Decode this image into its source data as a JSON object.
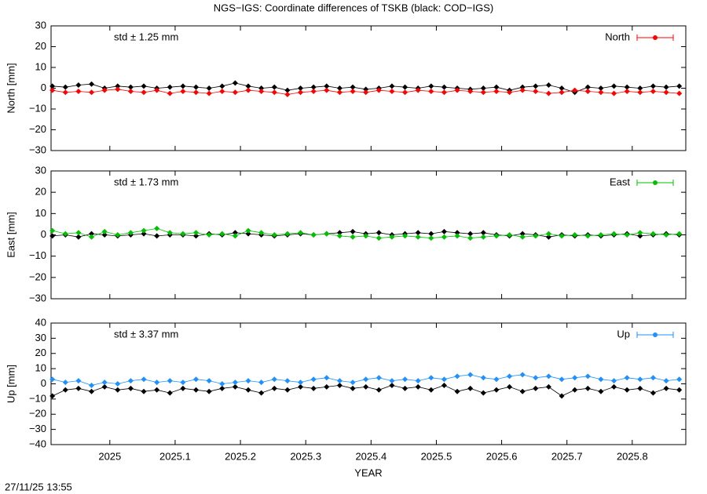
{
  "title": "NGS−IGS: Coordinate differences of TSKB (black: COD−IGS)",
  "footer": "27/11/25 13:55",
  "chart_data": [
    {
      "type": "line",
      "ylabel": "North [mm]",
      "annotation": "std ± 1.25 mm",
      "legend": "top-right",
      "x": [
        2024.912,
        2024.932,
        2024.952,
        2024.972,
        2024.992,
        2025.012,
        2025.032,
        2025.052,
        2025.072,
        2025.092,
        2025.112,
        2025.132,
        2025.152,
        2025.172,
        2025.192,
        2025.212,
        2025.232,
        2025.252,
        2025.272,
        2025.292,
        2025.312,
        2025.332,
        2025.352,
        2025.372,
        2025.392,
        2025.412,
        2025.432,
        2025.452,
        2025.472,
        2025.492,
        2025.512,
        2025.532,
        2025.552,
        2025.572,
        2025.592,
        2025.612,
        2025.632,
        2025.652,
        2025.672,
        2025.692,
        2025.712,
        2025.732,
        2025.752,
        2025.772,
        2025.792,
        2025.812,
        2025.832,
        2025.852,
        2025.872
      ],
      "xlim": [
        2024.91,
        2025.882
      ],
      "ylim": [
        -30,
        30
      ],
      "yticks": [
        {
          "value": -30,
          "label": "−30"
        },
        {
          "value": -20,
          "label": "−20"
        },
        {
          "value": -10,
          "label": "−10"
        },
        0,
        10,
        20,
        30
      ],
      "series": [
        {
          "color": "#000000",
          "values": [
            1,
            0.5,
            1.5,
            2,
            0,
            1,
            0.5,
            1,
            0,
            0.5,
            1,
            0.5,
            0,
            1,
            2.5,
            1,
            0,
            0.5,
            -1,
            0,
            0.5,
            1,
            0,
            0.5,
            -0.5,
            0,
            1,
            0.5,
            0,
            1,
            0.5,
            0,
            -0.5,
            0,
            0.5,
            -1,
            0.5,
            1,
            1.5,
            0,
            -2,
            0.5,
            0,
            1,
            0.5,
            0,
            1,
            0.5,
            1
          ]
        },
        {
          "name": "North",
          "color": "#ff0000",
          "values": [
            -1,
            -2,
            -1.5,
            -2,
            -1,
            -0.5,
            -1.5,
            -2,
            -1,
            -2.5,
            -1.5,
            -2,
            -2.5,
            -1.5,
            -2,
            -1,
            -1.5,
            -2,
            -3,
            -2,
            -1.5,
            -1,
            -2,
            -1.5,
            -2,
            -1,
            -1.5,
            -2,
            -1,
            -1.5,
            -2,
            -1,
            -1.5,
            -2,
            -1.5,
            -2,
            -1,
            -1.5,
            -2.5,
            -2,
            -1,
            -1.5,
            -2,
            -2.5,
            -1.5,
            -2,
            -1.5,
            -2,
            -2.5
          ]
        }
      ]
    },
    {
      "type": "line",
      "ylabel": "East [mm]",
      "annotation": "std ± 1.73 mm",
      "legend": "top-right",
      "x": [
        2024.912,
        2024.932,
        2024.952,
        2024.972,
        2024.992,
        2025.012,
        2025.032,
        2025.052,
        2025.072,
        2025.092,
        2025.112,
        2025.132,
        2025.152,
        2025.172,
        2025.192,
        2025.212,
        2025.232,
        2025.252,
        2025.272,
        2025.292,
        2025.312,
        2025.332,
        2025.352,
        2025.372,
        2025.392,
        2025.412,
        2025.432,
        2025.452,
        2025.472,
        2025.492,
        2025.512,
        2025.532,
        2025.552,
        2025.572,
        2025.592,
        2025.612,
        2025.632,
        2025.652,
        2025.672,
        2025.692,
        2025.712,
        2025.732,
        2025.752,
        2025.772,
        2025.792,
        2025.812,
        2025.832,
        2025.852,
        2025.872
      ],
      "xlim": [
        2024.91,
        2025.882
      ],
      "ylim": [
        -30,
        30
      ],
      "yticks": [
        {
          "value": -30,
          "label": "−30"
        },
        {
          "value": -20,
          "label": "−20"
        },
        {
          "value": -10,
          "label": "−10"
        },
        0,
        10,
        20,
        30
      ],
      "series": [
        {
          "color": "#000000",
          "values": [
            -0.5,
            0,
            -1,
            0.5,
            0,
            -0.5,
            0,
            0.5,
            -0.5,
            0,
            0,
            -0.5,
            0.5,
            0,
            1,
            0.5,
            0,
            -0.5,
            0,
            0.5,
            0,
            0.5,
            1,
            1.5,
            0.5,
            1,
            0,
            0.5,
            1,
            0.5,
            1.5,
            1,
            0.5,
            1,
            0,
            -0.5,
            0.5,
            0,
            -1,
            0,
            -0.5,
            0,
            -0.5,
            0,
            0.5,
            -0.5,
            0,
            0.5,
            0
          ]
        },
        {
          "name": "East",
          "color": "#00c000",
          "values": [
            2,
            0.5,
            1,
            -1,
            1.5,
            0,
            1,
            2,
            3,
            1,
            0.5,
            1,
            0,
            0.5,
            -0.5,
            2,
            1,
            0,
            0.5,
            1,
            0,
            0.5,
            -0.5,
            -1,
            -0.5,
            -1.5,
            -1,
            -0.5,
            -1,
            -1.5,
            -1,
            -0.5,
            -1.5,
            -1,
            -0.5,
            0,
            -1,
            -0.5,
            0.5,
            -0.5,
            0,
            -0.5,
            0,
            0.5,
            0,
            1,
            0.5,
            0,
            0.5
          ]
        }
      ]
    },
    {
      "type": "line",
      "ylabel": "Up [mm]",
      "annotation": "std ± 3.37 mm",
      "legend": "top-right",
      "xlabel": "YEAR",
      "x": [
        2024.912,
        2024.932,
        2024.952,
        2024.972,
        2024.992,
        2025.012,
        2025.032,
        2025.052,
        2025.072,
        2025.092,
        2025.112,
        2025.132,
        2025.152,
        2025.172,
        2025.192,
        2025.212,
        2025.232,
        2025.252,
        2025.272,
        2025.292,
        2025.312,
        2025.332,
        2025.352,
        2025.372,
        2025.392,
        2025.412,
        2025.432,
        2025.452,
        2025.472,
        2025.492,
        2025.512,
        2025.532,
        2025.552,
        2025.572,
        2025.592,
        2025.612,
        2025.632,
        2025.652,
        2025.672,
        2025.692,
        2025.712,
        2025.732,
        2025.752,
        2025.772,
        2025.792,
        2025.812,
        2025.832,
        2025.852,
        2025.872
      ],
      "xlim": [
        2024.91,
        2025.882
      ],
      "xticks": [
        2025,
        2025.1,
        2025.2,
        2025.3,
        2025.4,
        2025.5,
        2025.6,
        2025.7,
        2025.8
      ],
      "ylim": [
        -40,
        40
      ],
      "yticks": [
        {
          "value": -40,
          "label": "−40"
        },
        {
          "value": -30,
          "label": "−30"
        },
        {
          "value": -20,
          "label": "−20"
        },
        {
          "value": -10,
          "label": "−10"
        },
        0,
        10,
        20,
        30,
        40
      ],
      "series": [
        {
          "color": "#000000",
          "values": [
            -8,
            -4,
            -3,
            -5,
            -2,
            -4,
            -3,
            -5,
            -4,
            -6,
            -3,
            -4,
            -5,
            -3,
            -2,
            -4,
            -6,
            -3,
            -4,
            -2,
            -3,
            -2,
            -1,
            -3,
            -2,
            -4,
            -1,
            -3,
            -2,
            -4,
            -1,
            -5,
            -3,
            -6,
            -4,
            -2,
            -5,
            -3,
            -2,
            -8,
            -4,
            -3,
            -5,
            -2,
            -4,
            -3,
            -6,
            -3,
            -4
          ]
        },
        {
          "name": "Up",
          "color": "#1e90ff",
          "values": [
            3,
            1,
            2,
            -1,
            1,
            0,
            2,
            3,
            1,
            2,
            1,
            3,
            2,
            0,
            1,
            2,
            1,
            3,
            2,
            1,
            3,
            4,
            2,
            1,
            3,
            4,
            2,
            3,
            2,
            4,
            3,
            5,
            6,
            4,
            3,
            5,
            6,
            4,
            5,
            3,
            4,
            5,
            3,
            2,
            4,
            3,
            4,
            2,
            3
          ]
        }
      ]
    }
  ]
}
